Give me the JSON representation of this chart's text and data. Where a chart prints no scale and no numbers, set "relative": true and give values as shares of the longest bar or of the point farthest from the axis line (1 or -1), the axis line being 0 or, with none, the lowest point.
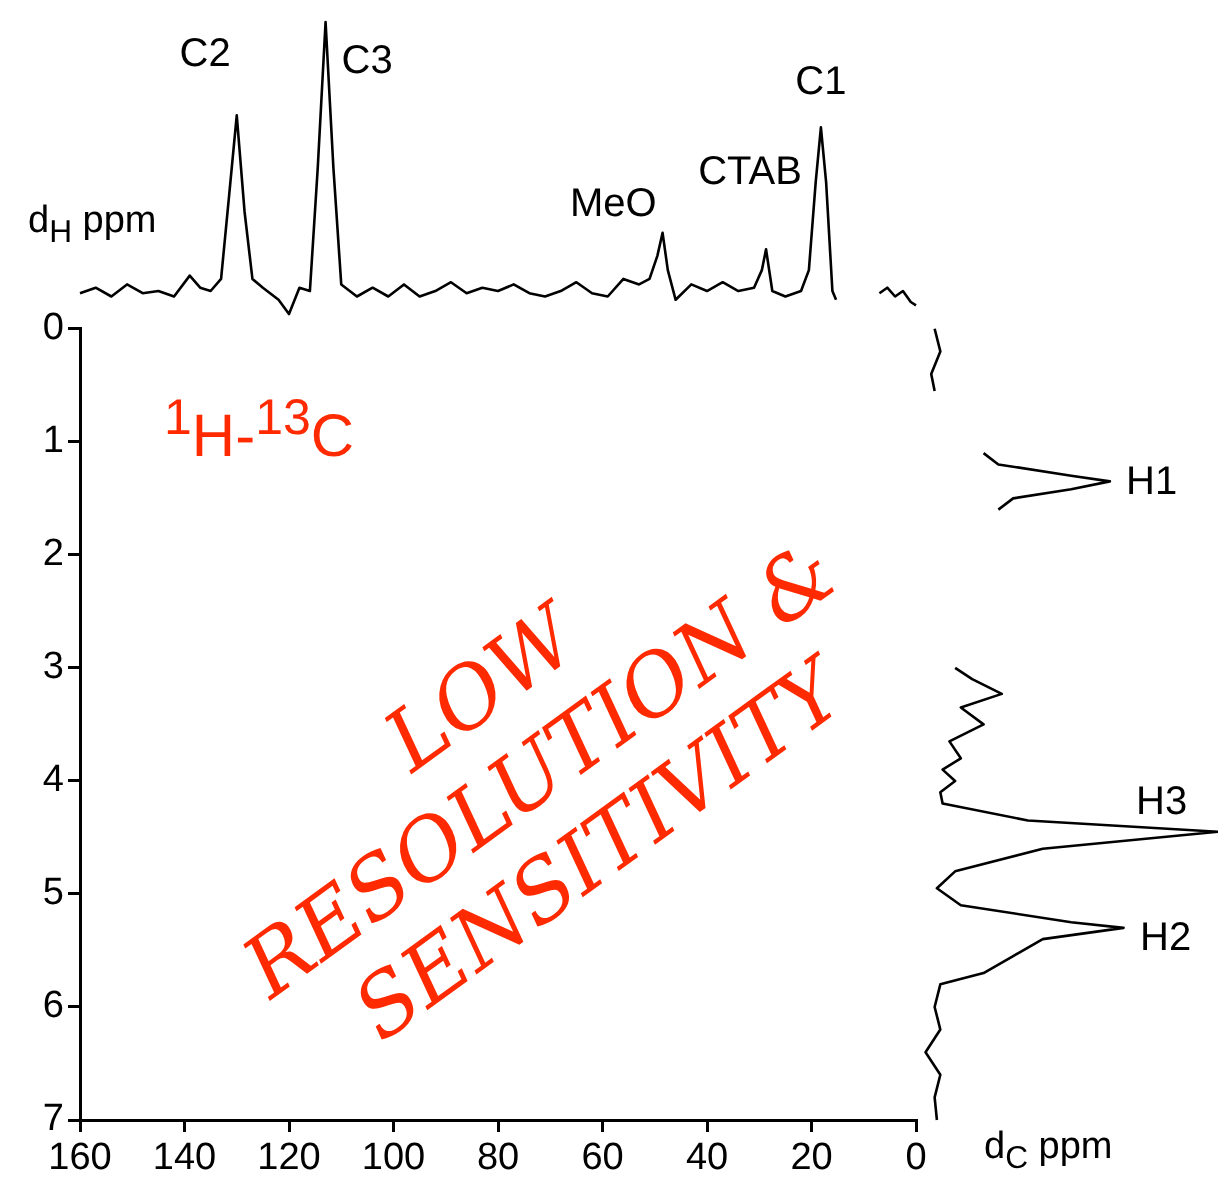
{
  "chart_data": [
    {
      "type": "line",
      "relative": true,
      "xlabel": "d$_{C}$ ppm",
      "xlim": [
        160,
        0
      ],
      "xticks": [
        160,
        140,
        120,
        100,
        80,
        60,
        40,
        20,
        0
      ],
      "tick_labels": "x",
      "series": [
        {
          "color": "#000000",
          "x": [
            160,
            157,
            154,
            151,
            148,
            145,
            142,
            139,
            137,
            135,
            133,
            131.5,
            130,
            128.5,
            127,
            125,
            122,
            120,
            118,
            116,
            114.5,
            113,
            111.5,
            110,
            107,
            104,
            101,
            98,
            95,
            92,
            89,
            86,
            83,
            80,
            77,
            74,
            71,
            68,
            65,
            62,
            59,
            56,
            53,
            51,
            49.5,
            48.5,
            47.5,
            46,
            43,
            40,
            37,
            34,
            31,
            29.5,
            28.7,
            27.5,
            25,
            22,
            20.5,
            19.2,
            18.2,
            17.2,
            16,
            15.3
          ],
          "values": [
            0.753,
            0.758,
            0.75,
            0.761,
            0.753,
            0.755,
            0.75,
            0.769,
            0.758,
            0.755,
            0.766,
            0.84,
            0.915,
            0.827,
            0.766,
            0.758,
            0.747,
            0.734,
            0.758,
            0.755,
            0.867,
            1,
            0.867,
            0.761,
            0.75,
            0.758,
            0.75,
            0.761,
            0.75,
            0.755,
            0.763,
            0.753,
            0.758,
            0.755,
            0.761,
            0.753,
            0.75,
            0.755,
            0.763,
            0.753,
            0.75,
            0.766,
            0.761,
            0.766,
            0.787,
            0.808,
            0.774,
            0.747,
            0.761,
            0.755,
            0.763,
            0.755,
            0.758,
            0.774,
            0.793,
            0.755,
            0.75,
            0.755,
            0.774,
            0.854,
            0.904,
            0.854,
            0.755,
            0.747
          ]
        },
        {
          "color": "#000000",
          "x": [
            7,
            5.5,
            4,
            2.5,
            1,
            0
          ],
          "values": [
            0.753,
            0.758,
            0.75,
            0.755,
            0.745,
            0.742
          ]
        }
      ],
      "annotations": [
        {
          "text": "C2",
          "x": 130,
          "y": 0.915
        },
        {
          "text": "C3",
          "x": 113,
          "y": 1
        },
        {
          "text": "MeO",
          "x": 48.5,
          "y": 0.808
        },
        {
          "text": "CTAB",
          "x": 28.7,
          "y": 0.793
        },
        {
          "text": "C1",
          "x": 18.2,
          "y": 0.904
        }
      ]
    },
    {
      "type": "line",
      "relative": true,
      "orientation": "horizontal",
      "color": "#000000",
      "ylabel": "d$_{H}$ ppm",
      "ylim": [
        7,
        0
      ],
      "yticks": [
        0,
        1,
        2,
        3,
        4,
        5,
        6,
        7
      ],
      "tick_labels": "y",
      "x": [
        0,
        0.2,
        0.4,
        0.55,
        0.8,
        1.1,
        1.2,
        1.3,
        1.35,
        1.42,
        1.5,
        1.6,
        2.3,
        3.0,
        3.1,
        3.23,
        3.35,
        3.5,
        3.65,
        3.8,
        3.9,
        4.0,
        4.1,
        4.2,
        4.35,
        4.45,
        4.6,
        4.8,
        4.95,
        5.1,
        5.25,
        5.3,
        5.4,
        5.55,
        5.7,
        5.8,
        6.0,
        6.2,
        6.4,
        6.6,
        6.8,
        7.0
      ],
      "values": [
        0.751,
        0.756,
        0.748,
        0.751,
        null,
        0.794,
        0.807,
        0.871,
        0.905,
        0.871,
        0.82,
        0.807,
        null,
        0.769,
        0.784,
        0.81,
        0.774,
        0.794,
        0.764,
        0.774,
        0.758,
        0.769,
        0.756,
        0.758,
        0.833,
        1,
        0.846,
        0.769,
        0.753,
        0.774,
        0.871,
        0.917,
        0.846,
        0.82,
        0.794,
        0.756,
        0.751,
        0.756,
        0.743,
        0.756,
        0.751,
        0.753
      ],
      "annotations": [
        "$^{1}$H-$^{13}$C",
        "LOW RESOLUTION & SENSITIVITY",
        "H1",
        "H3",
        "H2"
      ]
    }
  ]
}
